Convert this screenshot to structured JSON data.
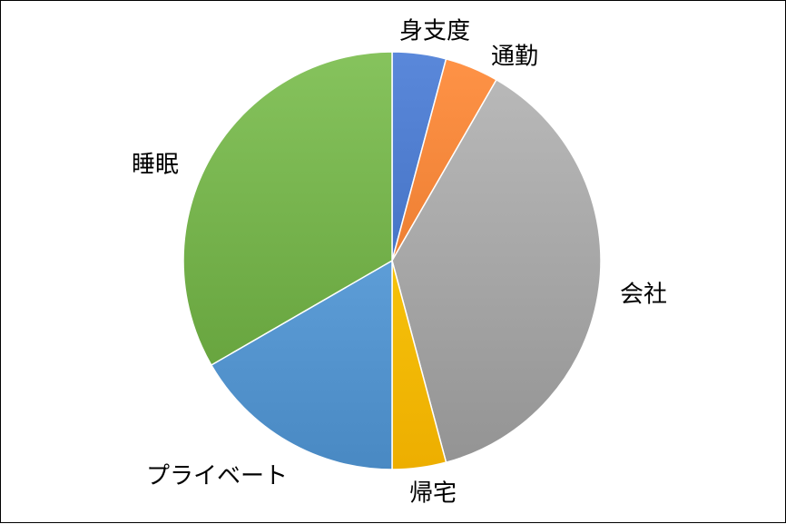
{
  "chart_data": {
    "type": "pie",
    "title": "",
    "legend": "none",
    "categories": [
      "身支度",
      "通勤",
      "会社",
      "帰宅",
      "プライベート",
      "睡眠"
    ],
    "values": [
      1,
      1,
      9,
      1,
      4,
      8
    ],
    "colors": [
      "#4472c4",
      "#ed7d31",
      "#a5a5a5",
      "#ffc000",
      "#5b9bd5",
      "#70ad47"
    ],
    "start_angle_deg": 0,
    "direction": "clockwise"
  }
}
